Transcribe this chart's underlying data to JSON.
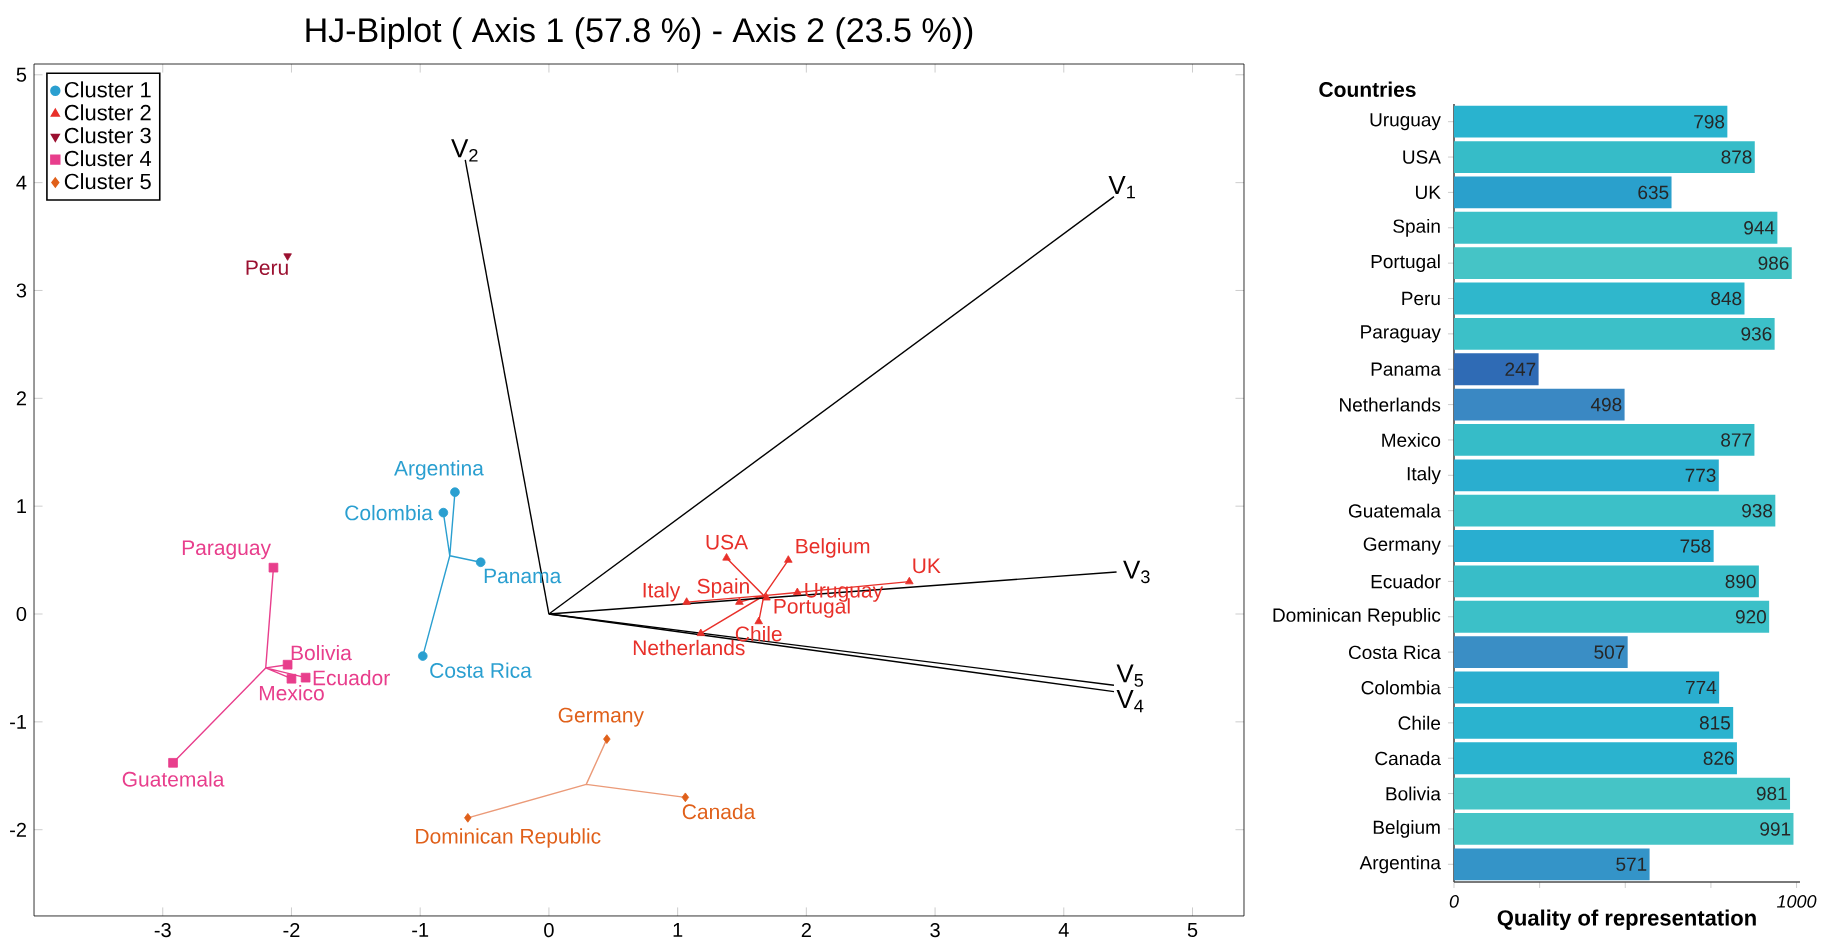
{
  "chart_data": [
    {
      "type": "scatter",
      "title": "HJ-Biplot ( Axis 1 (57.8 %) - Axis 2 (23.5 %))",
      "xlim": [
        -4,
        5.4
      ],
      "ylim": [
        -2.8,
        5.1
      ],
      "xticks": [
        -3,
        -2,
        -1,
        0,
        1,
        2,
        3,
        4,
        5
      ],
      "yticks": [
        -2,
        -1,
        0,
        1,
        2,
        3,
        4,
        5
      ],
      "legend": "top left",
      "series": [
        {
          "type": "line",
          "color": "#2a9fd0",
          "x": [
            -0.77,
            -0.73,
            -0.77,
            -0.82,
            -0.77,
            -0.53,
            -0.77,
            -0.98
          ],
          "values": [
            0.54,
            1.13,
            0.54,
            0.94,
            0.54,
            0.48,
            0.54,
            -0.39
          ]
        },
        {
          "type": "line",
          "color": "#e8302a",
          "x": [
            1.67,
            1.38,
            1.67,
            1.86,
            1.67,
            2.8,
            1.67,
            1.93,
            1.67,
            1.07,
            1.67,
            1.48,
            1.67,
            1.69,
            1.67,
            1.63,
            1.67,
            1.18
          ],
          "values": [
            0.17,
            0.52,
            0.17,
            0.5,
            0.17,
            0.3,
            0.17,
            0.2,
            0.17,
            0.11,
            0.17,
            0.11,
            0.17,
            0.15,
            0.17,
            -0.07,
            0.17,
            -0.18
          ]
        },
        {
          "type": "line",
          "color": "#e83e8c",
          "x": [
            -2.2,
            -2.14,
            -2.2,
            -2.03,
            -2.2,
            -1.89,
            -2.2,
            -2.0,
            -2.2,
            -2.92
          ],
          "values": [
            -0.5,
            0.43,
            -0.5,
            -0.47,
            -0.5,
            -0.59,
            -0.5,
            -0.6,
            -0.5,
            -1.38
          ]
        },
        {
          "type": "line",
          "color": "#eb9a78",
          "x": [
            0.29,
            0.45,
            0.29,
            -0.63,
            0.29,
            1.06
          ],
          "values": [
            -1.58,
            -1.16,
            -1.58,
            -1.89,
            -1.58,
            -1.7
          ]
        },
        {
          "type": "line",
          "name": "V$_{1}$",
          "color": "#000000",
          "x": [
            0,
            4.39
          ],
          "values": [
            0,
            3.87
          ]
        },
        {
          "type": "line",
          "name": "V$_{2}$",
          "color": "#000000",
          "x": [
            0,
            -0.65
          ],
          "values": [
            0,
            4.21
          ]
        },
        {
          "type": "line",
          "name": "V$_{3}$",
          "color": "#000000",
          "x": [
            0,
            4.41
          ],
          "values": [
            0,
            0.39
          ]
        },
        {
          "type": "line",
          "name": "V$_{4}$",
          "color": "#000000",
          "x": [
            0,
            4.39
          ],
          "values": [
            0,
            -0.72
          ]
        },
        {
          "type": "line",
          "name": "V$_{5}$",
          "color": "#000000",
          "x": [
            0,
            4.39
          ],
          "values": [
            0,
            -0.66
          ]
        },
        {
          "type": "scatter",
          "name": "Cluster 1",
          "color": "#2a9fd0",
          "marker": "circle",
          "x": [
            -0.73,
            -0.82,
            -0.53,
            -0.98
          ],
          "values": [
            1.13,
            0.94,
            0.48,
            -0.39
          ]
        },
        {
          "type": "scatter",
          "name": "Cluster 2",
          "color": "#e8302a",
          "marker": "triangle",
          "x": [
            1.38,
            1.86,
            2.8,
            1.93,
            1.07,
            1.48,
            1.69,
            1.63,
            1.18
          ],
          "values": [
            0.52,
            0.5,
            0.3,
            0.2,
            0.11,
            0.11,
            0.15,
            -0.07,
            -0.18
          ]
        },
        {
          "type": "scatter",
          "name": "Cluster 3",
          "color": "#9b1030",
          "marker": "triangle down",
          "x": [
            -2.03
          ],
          "values": [
            3.32
          ]
        },
        {
          "type": "scatter",
          "name": "Cluster 4",
          "color": "#e83e8c",
          "marker": "square",
          "x": [
            -2.14,
            -2.03,
            -1.89,
            -2.0,
            -2.92
          ],
          "values": [
            0.43,
            -0.47,
            -0.59,
            -0.6,
            -1.38
          ]
        },
        {
          "type": "scatter",
          "name": "Cluster 5",
          "color": "#e0601a",
          "marker": "diamond",
          "x": [
            0.45,
            -0.63,
            1.06
          ],
          "values": [
            -1.16,
            -1.89,
            -1.7
          ]
        }
      ],
      "annotations": [
        {
          "text": "Peru",
          "x": -2.03,
          "y": 3.32
        },
        {
          "text": "Argentina",
          "x": -0.73,
          "y": 1.13
        },
        {
          "text": "Colombia",
          "x": -0.82,
          "y": 0.94
        },
        {
          "text": "Panama",
          "x": -0.53,
          "y": 0.48
        },
        {
          "text": "Costa Rica",
          "x": -0.98,
          "y": -0.39
        },
        {
          "text": "Paraguay",
          "x": -2.14,
          "y": 0.43
        },
        {
          "text": "Bolivia",
          "x": -2.03,
          "y": -0.47
        },
        {
          "text": "Ecuador",
          "x": -1.89,
          "y": -0.59
        },
        {
          "text": "Mexico",
          "x": -2.0,
          "y": -0.6
        },
        {
          "text": "Guatemala",
          "x": -2.92,
          "y": -1.38
        },
        {
          "text": "USA",
          "x": 1.38,
          "y": 0.52
        },
        {
          "text": "Belgium",
          "x": 1.86,
          "y": 0.5
        },
        {
          "text": "UK",
          "x": 2.8,
          "y": 0.3
        },
        {
          "text": "Uruguay",
          "x": 1.93,
          "y": 0.2
        },
        {
          "text": "Italy",
          "x": 1.07,
          "y": 0.11
        },
        {
          "text": "Spain",
          "x": 1.48,
          "y": 0.11
        },
        {
          "text": "Portugal",
          "x": 1.69,
          "y": 0.15
        },
        {
          "text": "Chile",
          "x": 1.63,
          "y": -0.07
        },
        {
          "text": "Netherlands",
          "x": 1.18,
          "y": -0.18
        },
        {
          "text": "Germany",
          "x": 0.45,
          "y": -1.16
        },
        {
          "text": "Dominican Republic",
          "x": -0.63,
          "y": -1.89
        },
        {
          "text": "Canada",
          "x": 1.06,
          "y": -1.7
        }
      ]
    },
    {
      "type": "bar",
      "orientation": "horizontal",
      "ylabel": "Countries",
      "xlabel": "Quality of representation",
      "xlim": [
        0,
        1010
      ],
      "xticks": [
        0,
        {
          "value": 250,
          "label": null
        },
        {
          "value": 500,
          "label": null
        },
        {
          "value": 750,
          "label": null
        },
        1000
      ],
      "data_labels": true,
      "categories": [
        "Uruguay",
        "USA",
        "UK",
        "Spain",
        "Portugal",
        "Peru",
        "Paraguay",
        "Panama",
        "Netherlands",
        "Mexico",
        "Italy",
        "Guatemala",
        "Germany",
        "Ecuador",
        "Dominican Republic",
        "Costa Rica",
        "Colombia",
        "Chile",
        "Canada",
        "Bolivia",
        "Belgium",
        "Argentina"
      ],
      "values": [
        798,
        878,
        635,
        944,
        986,
        848,
        936,
        247,
        498,
        877,
        773,
        938,
        758,
        890,
        920,
        507,
        774,
        815,
        826,
        981,
        991,
        571
      ],
      "colors": [
        "#29b3cf",
        "#36bcc8",
        "#2aa0cc",
        "#3cc0c8",
        "#45c4c6",
        "#2fb7cc",
        "#3cc0c8",
        "#2f6bb5",
        "#3a88c3",
        "#36bcc8",
        "#2aaecf",
        "#3cc0c8",
        "#29aed0",
        "#38bdc8",
        "#3cc0c8",
        "#3a8ec5",
        "#2aaecf",
        "#2ab3cf",
        "#2ab3cf",
        "#45c4c6",
        "#45c4c6",
        "#3494c8"
      ]
    }
  ]
}
